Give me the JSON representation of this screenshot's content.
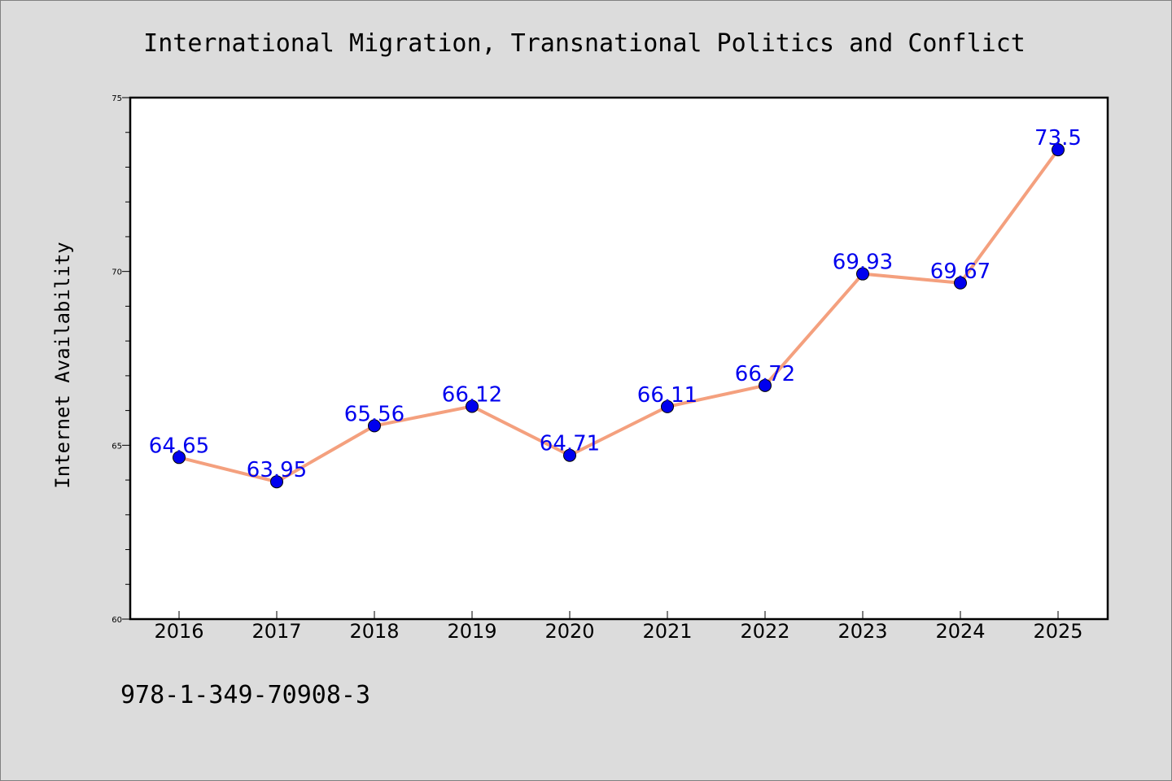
{
  "chart_data": {
    "type": "line",
    "title": "International Migration, Transnational Politics and Conflict",
    "xlabel": "",
    "ylabel": "Internet Availability",
    "categories": [
      "2016",
      "2017",
      "2018",
      "2019",
      "2020",
      "2021",
      "2022",
      "2023",
      "2024",
      "2025"
    ],
    "series": [
      {
        "values": [
          64.65,
          63.95,
          65.56,
          66.12,
          64.71,
          66.11,
          66.72,
          69.93,
          69.67,
          73.5
        ],
        "labels": [
          "64.65",
          "63.95",
          "65.56",
          "66.12",
          "64.71",
          "66.11",
          "66.72",
          "69.93",
          "69.67",
          "73.5"
        ],
        "line_color": "#f4a07e",
        "marker_color": "#0000ee"
      }
    ],
    "ylim": [
      60,
      75
    ],
    "yticks": [
      60,
      65,
      70,
      75
    ],
    "ytick_labels": [
      "60",
      "65",
      "70",
      "75"
    ],
    "minor_yticks_per_major": 5,
    "grid": false,
    "data_label_color": "#0000ee",
    "footer": "978-1-349-70908-3"
  }
}
